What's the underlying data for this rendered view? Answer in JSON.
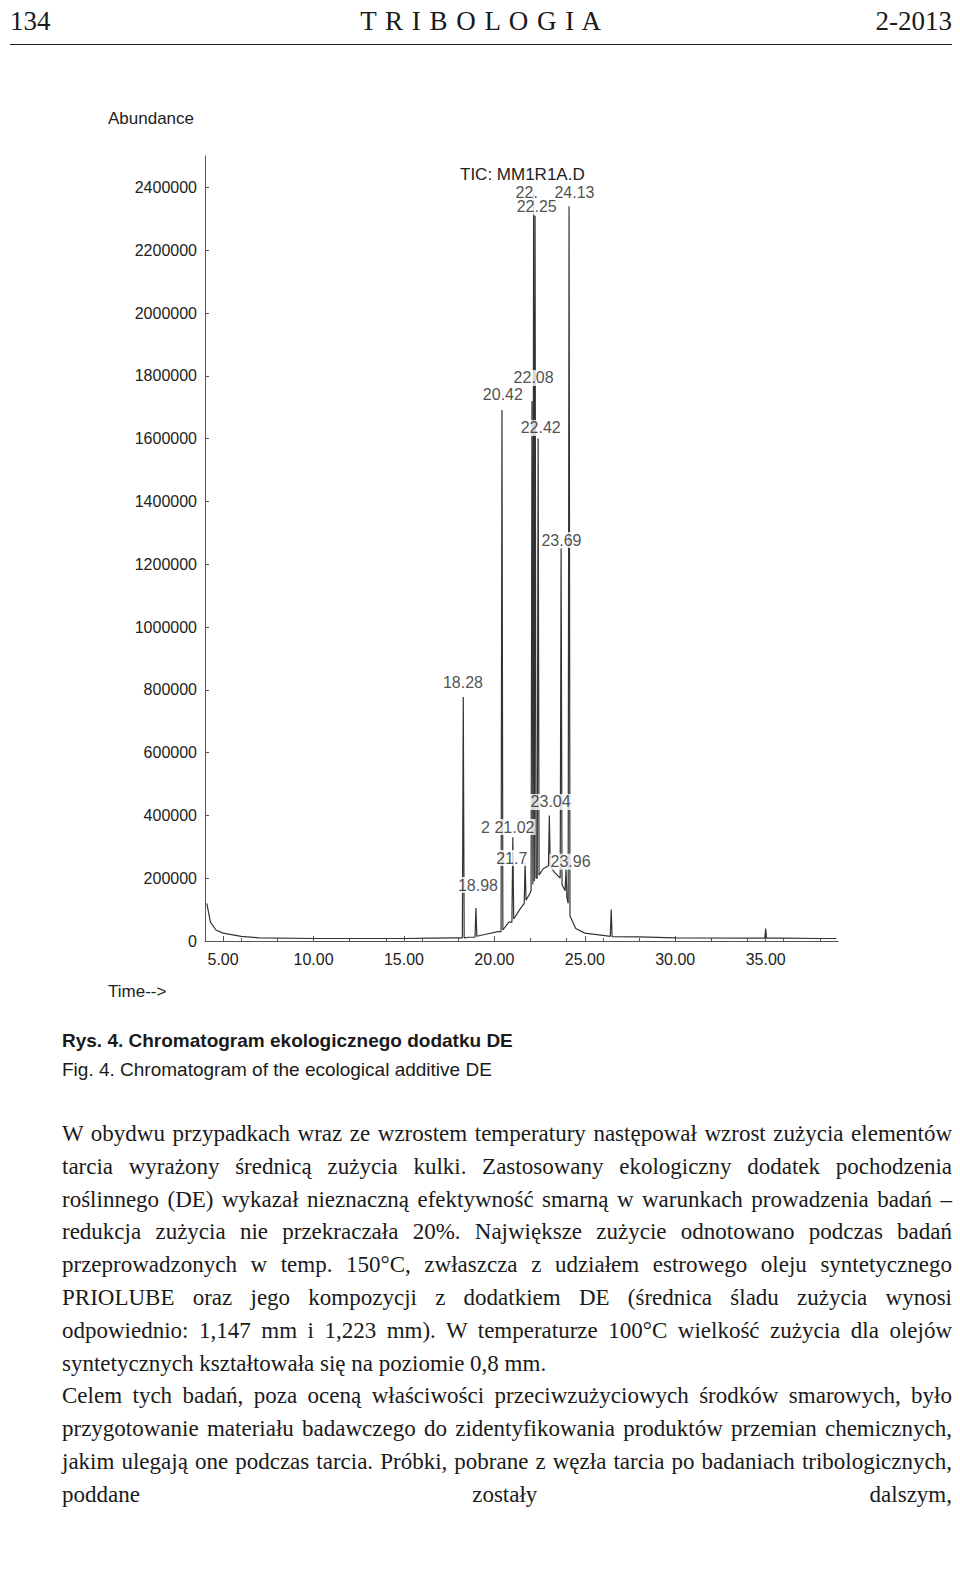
{
  "header": {
    "page": "134",
    "journal": "T R I B O L O G I A",
    "issue": "2-2013"
  },
  "chart_data": {
    "type": "line",
    "title": "TIC: MM1R1A.D",
    "y_label": "Abundance",
    "x_label": "Time-->",
    "color": "#333333",
    "x": [
      4.1,
      4.3,
      4.6,
      5,
      6,
      7,
      10,
      15,
      16.5,
      17.8,
      18.23,
      18.28,
      18.33,
      18.6,
      18.93,
      18.98,
      19.03,
      19.4,
      20.2,
      20.37,
      20.42,
      20.47,
      20.8,
      20.97,
      21.02,
      21.07,
      21.4,
      21.65,
      21.7,
      21.75,
      21.95,
      22.03,
      22.08,
      22.13,
      22.17,
      22.21,
      22.25,
      22.3,
      22.37,
      22.42,
      22.47,
      22.7,
      22.99,
      23.04,
      23.09,
      23.3,
      23.64,
      23.69,
      23.74,
      23.91,
      23.96,
      24.01,
      24.08,
      24.13,
      24.18,
      24.5,
      25,
      26,
      26.41,
      26.46,
      26.51,
      28,
      30,
      34.95,
      35,
      35.05,
      36,
      38,
      38.9
    ],
    "values": [
      120000,
      60000,
      35000,
      25000,
      15000,
      10000,
      8000,
      8000,
      9000,
      10000,
      10000,
      777000,
      10000,
      12000,
      12000,
      105000,
      15000,
      20000,
      30000,
      30000,
      1691000,
      35000,
      60000,
      60000,
      330000,
      70000,
      100000,
      120000,
      250000,
      130000,
      150000,
      160000,
      1720000,
      180000,
      2380000,
      190000,
      2310000,
      200000,
      200000,
      1600000,
      210000,
      230000,
      240000,
      400000,
      240000,
      220000,
      200000,
      1250000,
      180000,
      160000,
      230000,
      140000,
      120000,
      2340000,
      80000,
      40000,
      25000,
      18000,
      15000,
      100000,
      14000,
      13000,
      10000,
      9000,
      40000,
      9000,
      9000,
      8000,
      8000
    ],
    "xlim": [
      4,
      39
    ],
    "ylim": [
      0,
      2500000
    ],
    "xticks": [
      {
        "value": 5,
        "label": "5.00"
      },
      {
        "value": 10,
        "label": "10.00"
      },
      {
        "value": 15,
        "label": "15.00"
      },
      {
        "value": 20,
        "label": "20.00"
      },
      {
        "value": 25,
        "label": "25.00"
      },
      {
        "value": 30,
        "label": "30.00"
      },
      {
        "value": 35,
        "label": "35.00"
      }
    ],
    "yticks": [
      0,
      200000,
      400000,
      600000,
      800000,
      1000000,
      1200000,
      1400000,
      1600000,
      1800000,
      2000000,
      2200000,
      2400000
    ],
    "grid": false,
    "annotations": [
      {
        "text": "22.",
        "x": 21.79,
        "y": 2385000
      },
      {
        "text": "24.13",
        "x": 24.43,
        "y": 2385000
      },
      {
        "text": "22.25",
        "x": 22.34,
        "y": 2338000
      },
      {
        "text": "22.08",
        "x": 22.17,
        "y": 1793000
      },
      {
        "text": "20.42",
        "x": 20.47,
        "y": 1742000
      },
      {
        "text": "22.42",
        "x": 22.56,
        "y": 1634000
      },
      {
        "text": "23.69",
        "x": 23.71,
        "y": 1277000
      },
      {
        "text": "18.28",
        "x": 18.26,
        "y": 822000
      },
      {
        "text": "23.04",
        "x": 23.11,
        "y": 443000
      },
      {
        "text": "2 21.02",
        "x": 20.74,
        "y": 363000
      },
      {
        "text": "21.7",
        "x": 20.96,
        "y": 264000
      },
      {
        "text": "23.96",
        "x": 24.21,
        "y": 252000
      },
      {
        "text": "18.98",
        "x": 19.09,
        "y": 178000
      }
    ]
  },
  "caption": {
    "pl": "Rys. 4. Chromatogram ekologicznego dodatku DE",
    "en": "Fig. 4. Chromatogram of the ecological additive DE"
  },
  "paragraphs": [
    "W obydwu przypadkach wraz ze wzrostem temperatury następował wzrost zużycia elementów tarcia wyrażony średnicą zużycia kulki. Zastosowany ekologiczny dodatek pochodzenia roślinnego (DE) wykazał nieznaczną efektywność smarną w warunkach prowadzenia badań – redukcja zużycia nie przekraczała 20%. Największe zużycie odnotowano podczas badań przeprowadzonych w temp. 150°C, zwłaszcza z udziałem estrowego oleju syntetycznego PRIOLUBE oraz jego kompozycji z dodatkiem DE (średnica śladu zużycia wynosi odpowiednio: 1,147 mm i 1,223 mm). W temperaturze 100°C wielkość zużycia dla olejów syntetycznych kształtowała się na poziomie 0,8 mm.",
    "Celem tych badań, poza oceną właściwości przeciwzużyciowych środków smarowych, było przygotowanie materiału badawczego do zidentyfikowania produktów przemian chemicznych, jakim ulegają one podczas tarcia. Próbki, pobrane z węzła tarcia po badaniach tribologicznych, poddane zostały dalszym,"
  ]
}
